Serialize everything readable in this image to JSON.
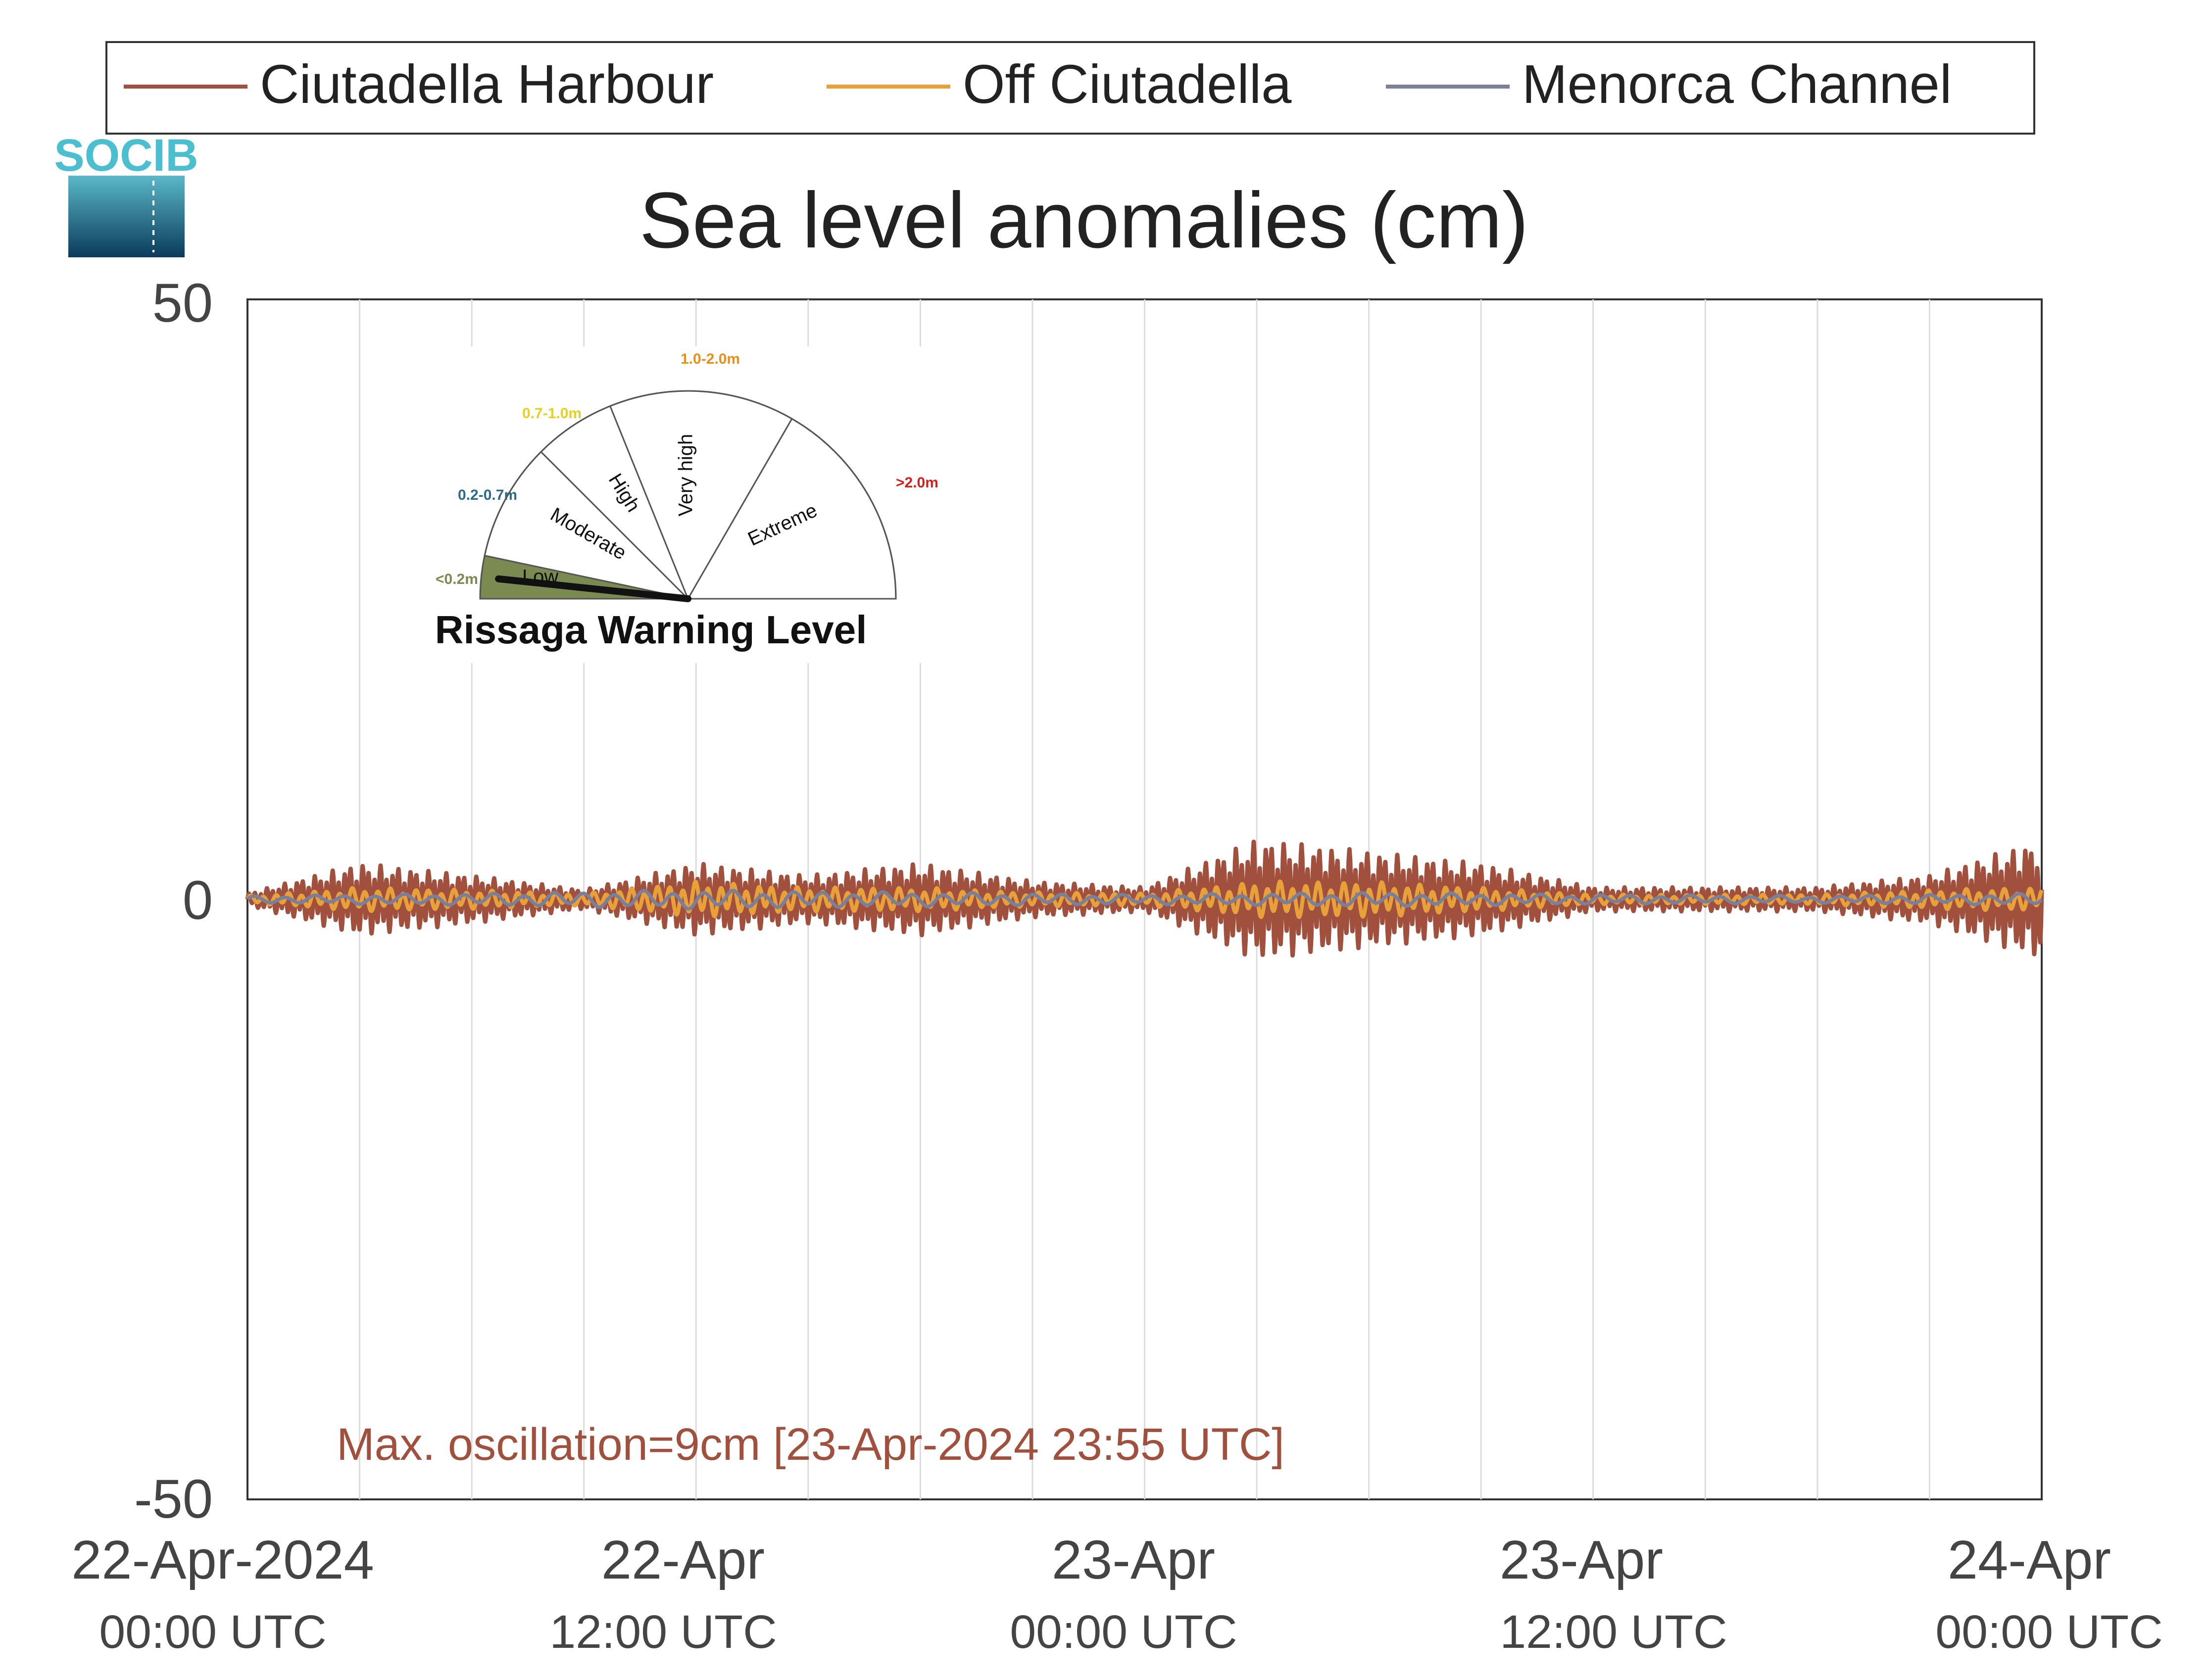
{
  "chart_data": {
    "type": "line",
    "title": "Sea level anomalies (cm)",
    "xlabel": "",
    "ylabel": "",
    "ylim": [
      -50,
      50
    ],
    "y_ticks": [
      "50",
      "0",
      "-50"
    ],
    "x_range": [
      "2024-04-22 00:00",
      "2024-04-24 00:00"
    ],
    "x_ticks": [
      {
        "date": "22-Apr-2024",
        "time": "00:00 UTC"
      },
      {
        "date": "22-Apr",
        "time": "12:00 UTC"
      },
      {
        "date": "23-Apr",
        "time": "00:00 UTC"
      },
      {
        "date": "23-Apr",
        "time": "12:00 UTC"
      },
      {
        "date": "24-Apr",
        "time": "00:00 UTC"
      }
    ],
    "grid": "vertical lines every 3 hours",
    "legend_position": "top",
    "series": [
      {
        "name": "Ciutadella Harbour",
        "color": "#a0503c",
        "x": [
          "2024-04-22 00:00",
          "2024-04-22 03:00",
          "2024-04-22 06:00",
          "2024-04-22 09:00",
          "2024-04-22 12:00",
          "2024-04-22 15:00",
          "2024-04-22 18:00",
          "2024-04-22 21:00",
          "2024-04-23 00:00",
          "2024-04-23 03:00",
          "2024-04-23 06:00",
          "2024-04-23 09:00",
          "2024-04-23 12:00",
          "2024-04-23 15:00",
          "2024-04-23 18:00",
          "2024-04-23 21:00",
          "2024-04-24 00:00"
        ],
        "envelope": [
          0.5,
          3,
          2,
          0.8,
          3,
          2,
          3,
          1.5,
          1,
          5,
          4,
          3,
          1,
          1,
          1,
          2,
          5
        ]
      },
      {
        "name": "Off Ciutadella",
        "color": "#e8a03a",
        "x": [
          "2024-04-22 00:00",
          "2024-04-22 03:00",
          "2024-04-22 06:00",
          "2024-04-22 09:00",
          "2024-04-22 12:00",
          "2024-04-22 15:00",
          "2024-04-22 18:00",
          "2024-04-22 21:00",
          "2024-04-23 00:00",
          "2024-04-23 03:00",
          "2024-04-23 06:00",
          "2024-04-23 09:00",
          "2024-04-23 12:00",
          "2024-04-23 15:00",
          "2024-04-23 18:00",
          "2024-04-23 21:00",
          "2024-04-24 00:00"
        ],
        "envelope": [
          0.3,
          1,
          0.8,
          0.5,
          1.5,
          1,
          1,
          0.6,
          0.5,
          1.5,
          1.5,
          1,
          0.4,
          0.4,
          0.4,
          0.8,
          1
        ]
      },
      {
        "name": "Menorca Channel",
        "color": "#7a7f9a",
        "x": [
          "2024-04-22 00:00",
          "2024-04-22 06:00",
          "2024-04-22 12:00",
          "2024-04-22 18:00",
          "2024-04-23 00:00",
          "2024-04-23 06:00",
          "2024-04-23 12:00",
          "2024-04-23 18:00",
          "2024-04-24 00:00"
        ],
        "envelope": [
          0.3,
          0.5,
          0.8,
          0.6,
          0.4,
          0.6,
          0.4,
          0.3,
          0.5
        ]
      }
    ],
    "annotation": "Max. oscillation=9cm [23-Apr-2024 23:55 UTC]",
    "annotation_color": "#a0503c"
  },
  "logo": {
    "text": "SOCIB",
    "color": "#4bbfcf"
  },
  "gauge": {
    "title": "Rissaga Warning Level",
    "current_level": "Low",
    "segments": [
      {
        "label": "Low",
        "range": "<0.2m",
        "color": "#7a8a50",
        "fill": "#7a8a50"
      },
      {
        "label": "Moderate",
        "range": "0.2-0.7m",
        "color": "#2e6b8a",
        "fill": "#ffffff"
      },
      {
        "label": "High",
        "range": "0.7-1.0m",
        "color": "#e8d020",
        "fill": "#ffffff"
      },
      {
        "label": "Very high",
        "range": "1.0-2.0m",
        "color": "#e8901a",
        "fill": "#ffffff"
      },
      {
        "label": "Extreme",
        "range": ">2.0m",
        "color": "#d02020",
        "fill": "#ffffff"
      }
    ]
  }
}
